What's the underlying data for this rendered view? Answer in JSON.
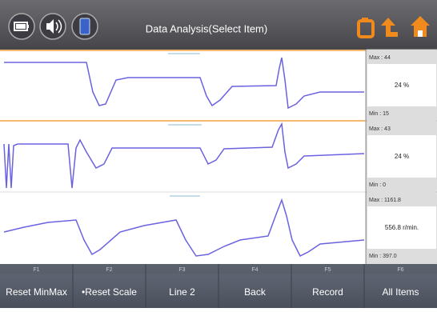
{
  "header": {
    "title": "Data Analysis(Select Item)"
  },
  "panels": [
    {
      "max": "Max : 44",
      "value": "24 %",
      "min": "Min : 15"
    },
    {
      "max": "Max : 43",
      "value": "24 %",
      "min": "Min : 0"
    },
    {
      "max": "Max : 1161.8",
      "value": "556.8 r/min.",
      "min": "Min : 397.0"
    }
  ],
  "function_keys": [
    {
      "key": "F1",
      "label": "Reset MinMax"
    },
    {
      "key": "F2",
      "label": "•Reset Scale"
    },
    {
      "key": "F3",
      "label": "Line 2"
    },
    {
      "key": "F4",
      "label": "Back"
    },
    {
      "key": "F5",
      "label": "Record"
    },
    {
      "key": "F6",
      "label": "All Items"
    }
  ]
}
